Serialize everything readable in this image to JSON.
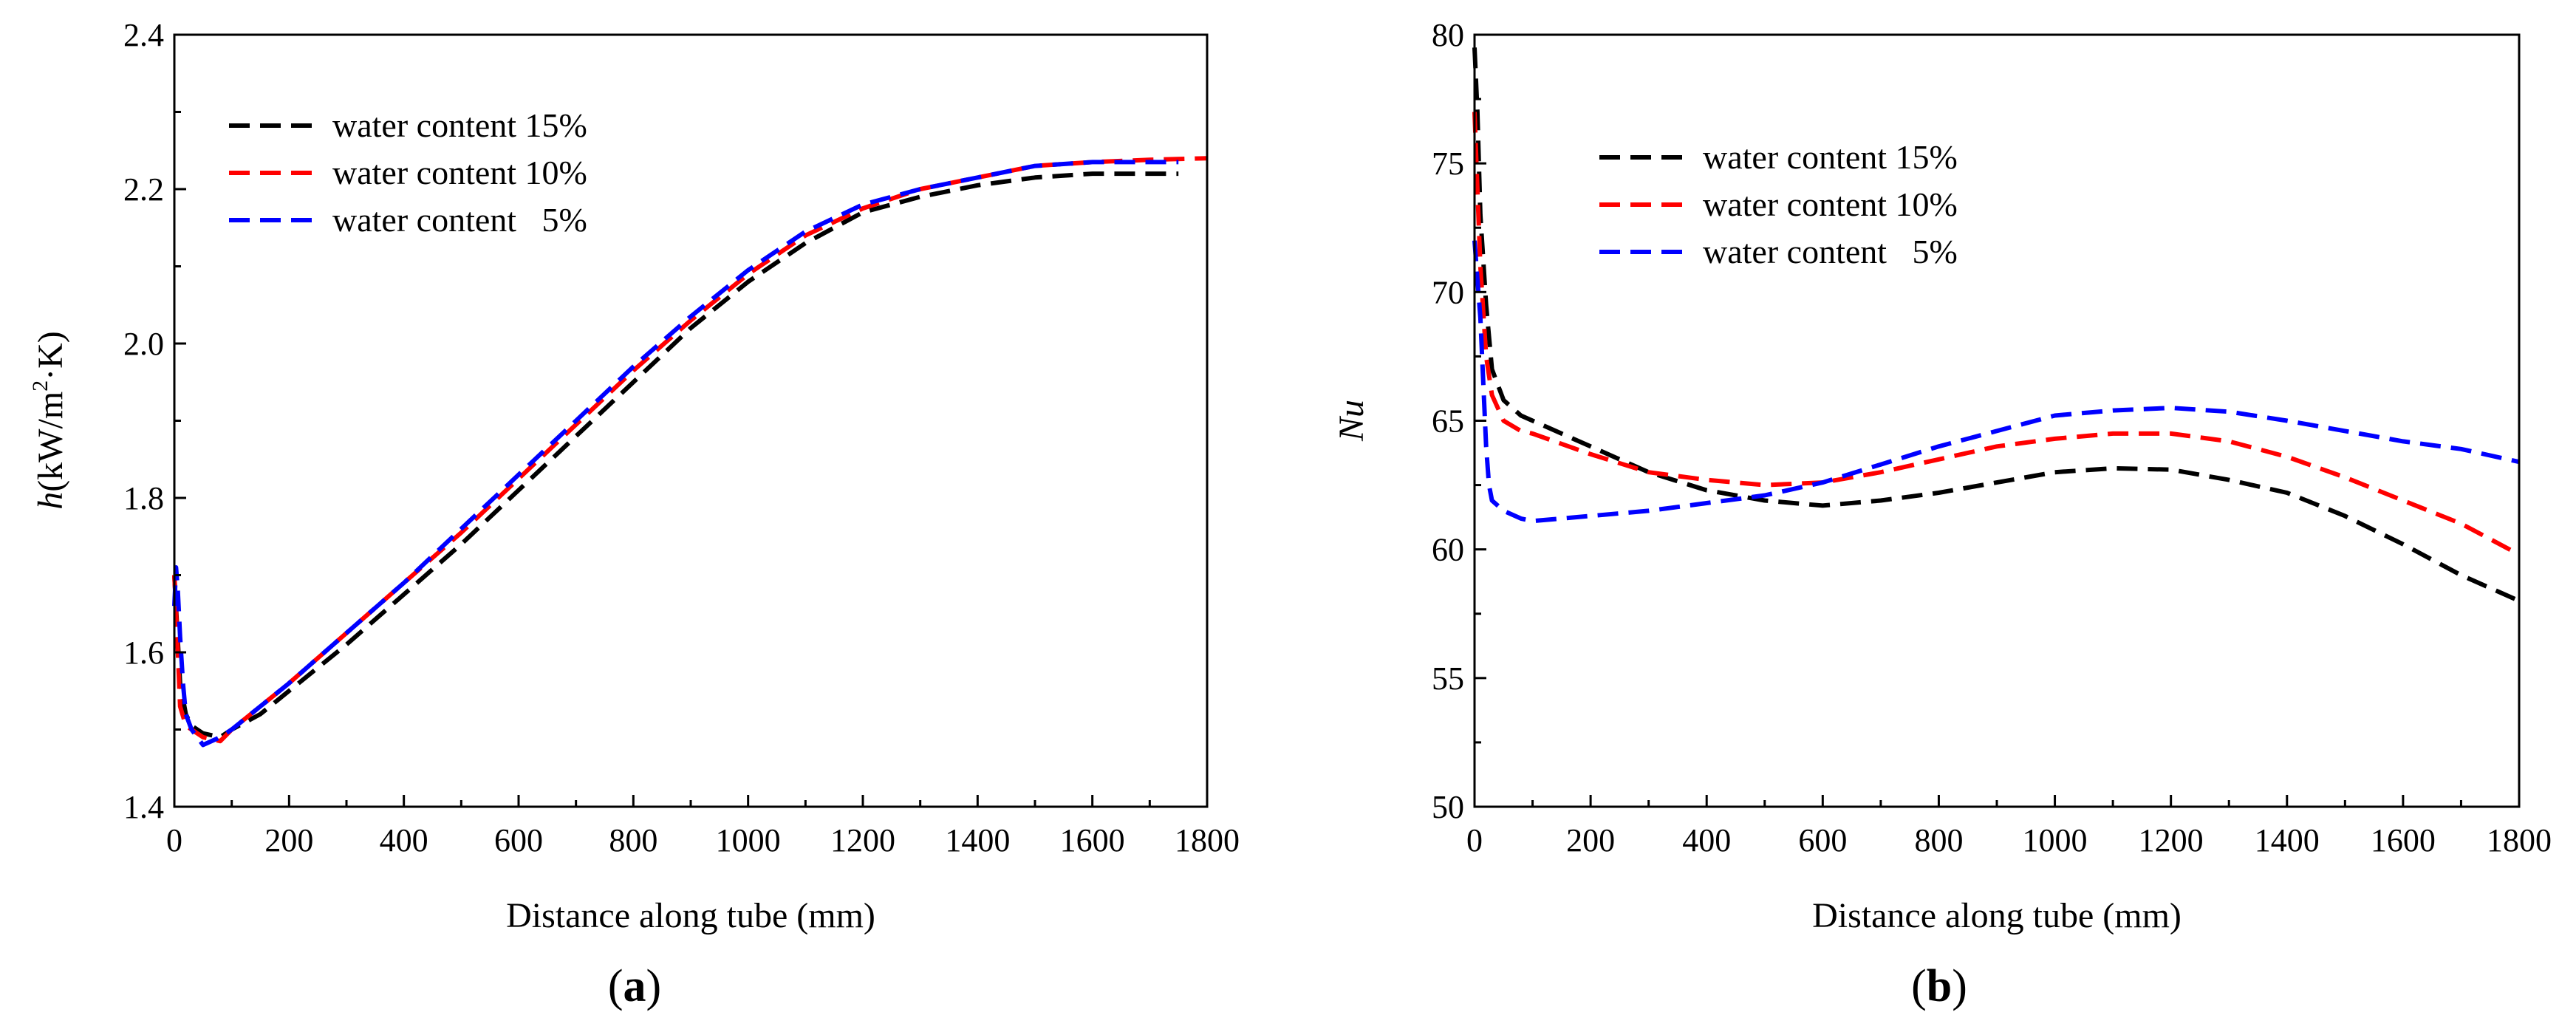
{
  "chart_data": [
    {
      "type": "line",
      "panel_label": "a",
      "xlabel": "Distance along tube (mm)",
      "ylabel": {
        "symbol": "h",
        "units_prefix": "(kW/m",
        "units_exp": "2",
        "units_suffix": "·K)"
      },
      "xlim": [
        0,
        1800
      ],
      "ylim": [
        1.4,
        2.4
      ],
      "xticks": [
        "0",
        "200",
        "400",
        "600",
        "800",
        "1000",
        "1200",
        "1400",
        "1600",
        "1800"
      ],
      "yticks": [
        "1.4",
        "1.6",
        "1.8",
        "2.0",
        "2.2",
        "2.4"
      ],
      "legend_position": "top-left",
      "series": [
        {
          "name": "water content 15%",
          "color": "#000000",
          "x": [
            0,
            5,
            10,
            20,
            30,
            50,
            80,
            100,
            150,
            200,
            300,
            400,
            500,
            600,
            700,
            800,
            900,
            1000,
            1100,
            1200,
            1300,
            1400,
            1500,
            1600,
            1700,
            1750
          ],
          "y": [
            1.7,
            1.63,
            1.56,
            1.52,
            1.505,
            1.495,
            1.49,
            1.5,
            1.52,
            1.55,
            1.61,
            1.675,
            1.74,
            1.81,
            1.88,
            1.95,
            2.02,
            2.08,
            2.13,
            2.17,
            2.19,
            2.205,
            2.215,
            2.22,
            2.22,
            2.22
          ]
        },
        {
          "name": "water content 10%",
          "color": "#ff0000",
          "x": [
            0,
            5,
            10,
            20,
            30,
            50,
            80,
            100,
            150,
            200,
            300,
            400,
            500,
            600,
            700,
            800,
            900,
            1000,
            1100,
            1200,
            1300,
            1400,
            1500,
            1600,
            1700,
            1800
          ],
          "y": [
            1.7,
            1.62,
            1.53,
            1.505,
            1.5,
            1.49,
            1.485,
            1.5,
            1.53,
            1.56,
            1.625,
            1.69,
            1.755,
            1.825,
            1.895,
            1.965,
            2.03,
            2.09,
            2.14,
            2.175,
            2.2,
            2.215,
            2.23,
            2.235,
            2.238,
            2.24
          ]
        },
        {
          "name": "water content   5%",
          "color": "#0000ff",
          "x": [
            0,
            3,
            6,
            10,
            15,
            20,
            30,
            50,
            80,
            100,
            150,
            200,
            300,
            400,
            500,
            600,
            700,
            800,
            900,
            1000,
            1100,
            1200,
            1300,
            1400,
            1500,
            1600,
            1700,
            1750
          ],
          "y": [
            1.66,
            1.71,
            1.68,
            1.62,
            1.56,
            1.52,
            1.5,
            1.48,
            1.49,
            1.5,
            1.53,
            1.56,
            1.625,
            1.69,
            1.76,
            1.83,
            1.9,
            1.97,
            2.035,
            2.095,
            2.145,
            2.18,
            2.2,
            2.215,
            2.23,
            2.235,
            2.235,
            2.235
          ]
        }
      ]
    },
    {
      "type": "line",
      "panel_label": "b",
      "xlabel": "Distance along tube (mm)",
      "ylabel": {
        "symbol": "Nu"
      },
      "xlim": [
        0,
        1800
      ],
      "ylim": [
        50,
        80
      ],
      "xticks": [
        "0",
        "200",
        "400",
        "600",
        "800",
        "1000",
        "1200",
        "1400",
        "1600",
        "1800"
      ],
      "yticks": [
        "50",
        "55",
        "60",
        "65",
        "70",
        "75",
        "80"
      ],
      "legend_position": "top-center",
      "series": [
        {
          "name": "water content 15%",
          "color": "#000000",
          "x": [
            0,
            5,
            10,
            20,
            30,
            50,
            80,
            100,
            200,
            300,
            400,
            500,
            600,
            700,
            800,
            900,
            1000,
            1100,
            1200,
            1300,
            1400,
            1500,
            1600,
            1700,
            1800
          ],
          "y": [
            79.5,
            77,
            73,
            69.5,
            67,
            65.8,
            65.2,
            65,
            64,
            63,
            62.3,
            61.9,
            61.7,
            61.9,
            62.2,
            62.6,
            63,
            63.15,
            63.1,
            62.7,
            62.2,
            61.3,
            60.2,
            59,
            58
          ]
        },
        {
          "name": "water content 10%",
          "color": "#ff0000",
          "x": [
            0,
            5,
            10,
            20,
            30,
            50,
            80,
            100,
            200,
            300,
            400,
            500,
            600,
            700,
            800,
            900,
            1000,
            1100,
            1200,
            1300,
            1400,
            1500,
            1600,
            1700,
            1800
          ],
          "y": [
            77,
            74,
            71,
            67.5,
            66,
            65,
            64.6,
            64.5,
            63.7,
            63,
            62.7,
            62.5,
            62.6,
            63,
            63.5,
            64,
            64.3,
            64.5,
            64.5,
            64.2,
            63.6,
            62.8,
            61.9,
            61,
            59.8
          ]
        },
        {
          "name": "water content   5%",
          "color": "#0000ff",
          "x": [
            0,
            5,
            10,
            15,
            20,
            25,
            30,
            50,
            80,
            100,
            200,
            300,
            400,
            500,
            600,
            700,
            800,
            900,
            1000,
            1100,
            1200,
            1300,
            1400,
            1500,
            1600,
            1700,
            1800
          ],
          "y": [
            72,
            70.5,
            69,
            66.5,
            64,
            62.5,
            61.9,
            61.5,
            61.2,
            61.1,
            61.3,
            61.5,
            61.8,
            62.1,
            62.6,
            63.3,
            64,
            64.6,
            65.2,
            65.4,
            65.5,
            65.35,
            65,
            64.6,
            64.2,
            63.9,
            63.4
          ]
        }
      ]
    }
  ]
}
